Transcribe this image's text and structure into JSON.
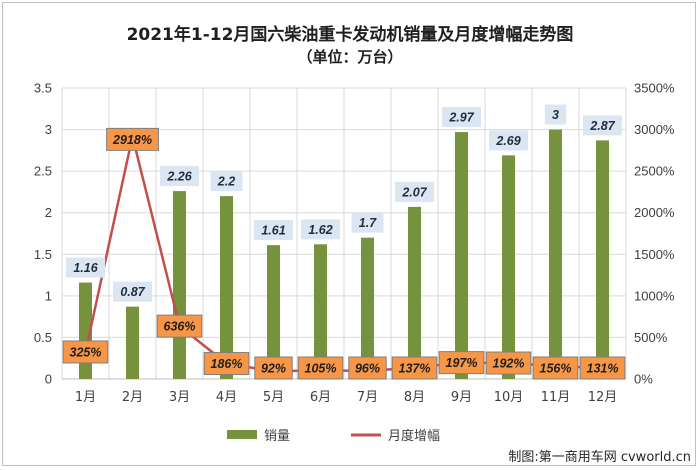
{
  "chart_data": {
    "type": "bar+line",
    "title": "2021年1-12月国六柴油重卡发动机销量及月度增幅走势图",
    "subtitle": "（单位：万台）",
    "categories": [
      "1月",
      "2月",
      "3月",
      "4月",
      "5月",
      "6月",
      "7月",
      "8月",
      "9月",
      "10月",
      "11月",
      "12月"
    ],
    "series": [
      {
        "name": "销量",
        "type": "bar",
        "axis": "left",
        "color": "#76923c",
        "values": [
          1.16,
          0.87,
          2.26,
          2.2,
          1.61,
          1.62,
          1.7,
          2.07,
          2.97,
          2.69,
          3,
          2.87
        ],
        "labels": [
          "1.16",
          "0.87",
          "2.26",
          "2.2",
          "1.61",
          "1.62",
          "1.7",
          "2.07",
          "2.97",
          "2.69",
          "3",
          "2.87"
        ],
        "label_bg": "#dce6f2"
      },
      {
        "name": "月度增幅",
        "type": "line",
        "axis": "right",
        "color": "#c0504d",
        "values": [
          325,
          2918,
          636,
          186,
          92,
          105,
          96,
          137,
          197,
          192,
          156,
          131
        ],
        "labels": [
          "325%",
          "2918%",
          "636%",
          "186%",
          "92%",
          "105%",
          "96%",
          "137%",
          "197%",
          "192%",
          "156%",
          "131%"
        ],
        "label_bg": "#f79646"
      }
    ],
    "y_left": {
      "ylim": [
        0,
        3.5
      ],
      "ticks": [
        "0",
        "0.5",
        "1",
        "1.5",
        "2",
        "2.5",
        "3",
        "3.5"
      ]
    },
    "y_right": {
      "ylim": [
        0,
        3500
      ],
      "ticks": [
        "0%",
        "500%",
        "1000%",
        "1500%",
        "2000%",
        "2500%",
        "3000%",
        "3500%"
      ]
    },
    "grid": true,
    "legend_position": "bottom",
    "source_note": "制图:第一商用车网 cvworld.cn"
  }
}
